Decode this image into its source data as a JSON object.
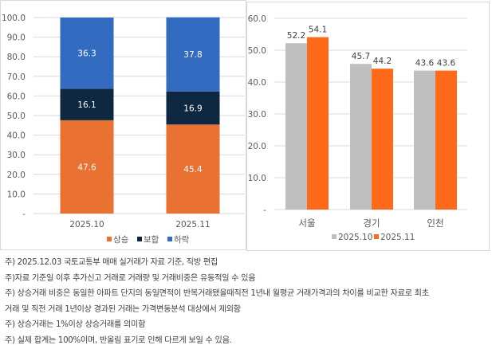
{
  "chart_data": [
    {
      "type": "bar",
      "stacked": true,
      "categories": [
        "2025.10",
        "2025.11"
      ],
      "series": [
        {
          "name": "상승",
          "values": [
            47.6,
            45.4
          ],
          "color": "#e97132"
        },
        {
          "name": "보합",
          "values": [
            16.1,
            16.9
          ],
          "color": "#0e2841"
        },
        {
          "name": "하락",
          "values": [
            36.3,
            37.8
          ],
          "color": "#326bbf"
        }
      ],
      "ylim": [
        0,
        100
      ],
      "yticks": [
        "-",
        "10.0",
        "20.0",
        "30.0",
        "40.0",
        "50.0",
        "60.0",
        "70.0",
        "80.0",
        "90.0",
        "100.0"
      ],
      "grid": true,
      "legend": "bottom"
    },
    {
      "type": "bar",
      "categories": [
        "서울",
        "경기",
        "인천"
      ],
      "series": [
        {
          "name": "2025.10",
          "values": [
            52.2,
            45.7,
            43.6
          ],
          "color": "#bfbfbf"
        },
        {
          "name": "2025.11",
          "values": [
            54.1,
            44.2,
            43.6
          ],
          "color": "#ff6a1a"
        }
      ],
      "ylim": [
        0,
        60
      ],
      "yticks": [
        "-",
        "10.0",
        "20.0",
        "30.0",
        "40.0",
        "50.0",
        "60.0"
      ],
      "grid": true,
      "legend": "bottom"
    }
  ],
  "notes": [
    "주) 2025.12.03 국토교통부 매매 실거래가 자료 기준, 직방 편집",
    "주)자료 기준일 이후 추가신고 거래로 거래량 및 거래비중은 유동적일 수 있음",
    "주) 상승거래 비중은 동일한 아파트 단지의 동일면적이 반복거래됐을때직전 1년내 월평균 거래가격과의 차이를 비교한 자료로 최초",
    "거래 및 직전 거래 1년이상 경과된 거래는 가격변동분석 대상에서 제외함",
    "주) 상승거래는 1%이상 상승거래를 의미함",
    "주) 실제 합계는 100%이며, 반올림 표기로 인해 다르게 보일 수 있음."
  ]
}
